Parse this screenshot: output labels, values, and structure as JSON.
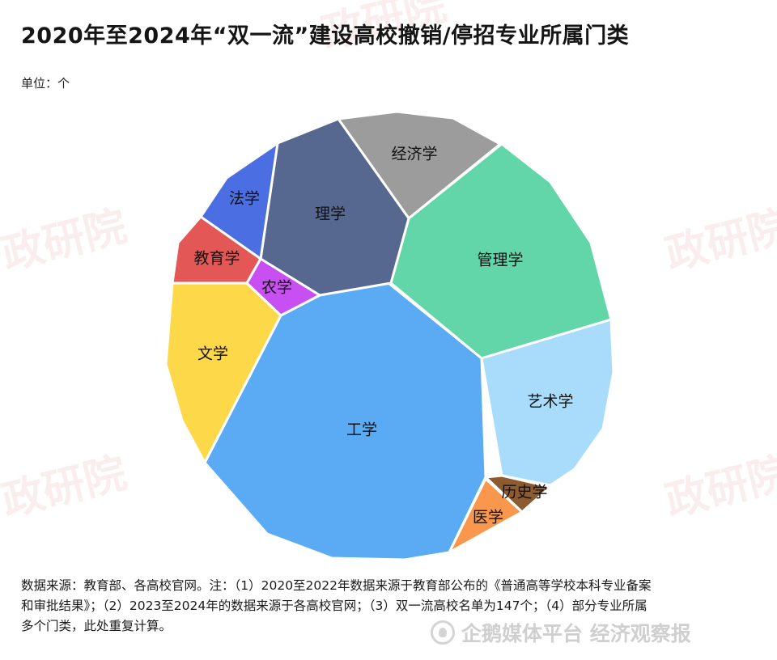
{
  "header": {
    "title": "2020年至2024年“双一流”建设高校撤销/停招专业所属门类",
    "unit": "单位：个"
  },
  "chart_data": {
    "type": "pie",
    "title": "2020年至2024年“双一流”建设高校撤销/停招专业所属门类",
    "unit": "单位：个",
    "categories": [
      "工学",
      "管理学",
      "艺术学",
      "经济学",
      "理学",
      "文学",
      "法学",
      "教育学",
      "农学",
      "医学",
      "历史学"
    ],
    "values": [
      null,
      null,
      null,
      null,
      null,
      null,
      null,
      null,
      null,
      null,
      null
    ],
    "colors": [
      "#5aabf3",
      "#62d6a9",
      "#a9dcfb",
      "#9c9c9c",
      "#566890",
      "#fdd94a",
      "#4b6fe3",
      "#e45757",
      "#c84ff1",
      "#f9984c",
      "#8c5b2f"
    ]
  },
  "footer": {
    "source_line1": "数据来源：教育部、各高校官网。注：（1）2020至2022年数据来源于教育部公布的《普通高等学校本科专业备案",
    "source_line2": "和审批结果》；（2）2023至2024年的数据来源于各高校官网；（3）双一流高校名单为147个；（4）部分专业所属",
    "source_line3": "多个门类，此处重复计算。",
    "brand_text": "企鹅媒体平台 经济观察报"
  },
  "watermark": {
    "text": "政研院"
  }
}
